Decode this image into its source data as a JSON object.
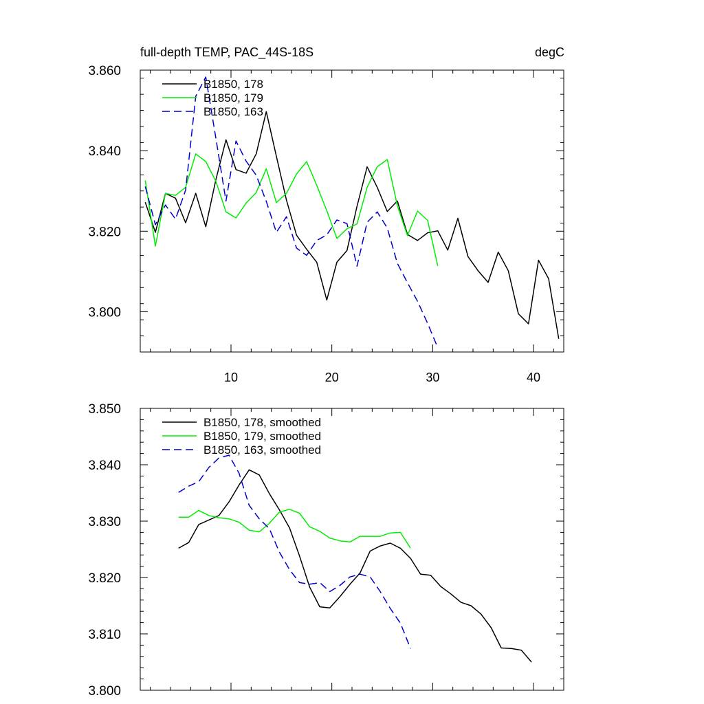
{
  "chart_data": [
    {
      "type": "line",
      "title": "full-depth TEMP, PAC_44S-18S",
      "units": "degC",
      "xlim": [
        1,
        43
      ],
      "ylim": [
        3.79,
        3.86
      ],
      "xticks": [
        10,
        20,
        30,
        40
      ],
      "yticks": [
        3.8,
        3.82,
        3.84,
        3.86
      ],
      "ytick_labels": [
        "3.800",
        "3.820",
        "3.840",
        "3.860"
      ],
      "grid": false,
      "legend_position": "top-left",
      "series": [
        {
          "name": "B1850, 178",
          "color": "#000000",
          "dash": "solid",
          "x": [
            1.5,
            2.5,
            3.5,
            4.5,
            5.5,
            6.5,
            7.5,
            8.5,
            9.5,
            10.5,
            11.5,
            12.5,
            13.5,
            14.5,
            15.5,
            16.5,
            17.5,
            18.5,
            19.5,
            20.5,
            21.5,
            22.5,
            23.5,
            24.5,
            25.5,
            26.5,
            27.5,
            28.5,
            29.5,
            30.5,
            31.5,
            32.5,
            33.5,
            34.5,
            35.5,
            36.5,
            37.5,
            38.5,
            39.5,
            40.5,
            41.5,
            42.5
          ],
          "y": [
            3.8272,
            3.8197,
            3.8294,
            3.8282,
            3.8221,
            3.8294,
            3.8211,
            3.8328,
            3.8427,
            3.8353,
            3.8344,
            3.8392,
            3.8497,
            3.8386,
            3.8277,
            3.819,
            3.8155,
            3.8123,
            3.8029,
            3.8123,
            3.8152,
            3.8262,
            3.836,
            3.8309,
            3.8249,
            3.8275,
            3.8192,
            3.8177,
            3.8196,
            3.8201,
            3.8153,
            3.8232,
            3.8137,
            3.8102,
            3.8073,
            3.8148,
            3.8102,
            3.7995,
            3.797,
            3.8128,
            3.8082,
            3.7933
          ]
        },
        {
          "name": "B1850, 179",
          "color": "#00ee00",
          "dash": "solid",
          "x": [
            1.5,
            2.5,
            3.5,
            4.5,
            5.5,
            6.5,
            7.5,
            8.5,
            9.5,
            10.5,
            11.5,
            12.5,
            13.5,
            14.5,
            15.5,
            16.5,
            17.5,
            18.5,
            19.5,
            20.5,
            21.5,
            22.5,
            23.5,
            24.5,
            25.5,
            26.5,
            27.5,
            28.5,
            29.5,
            30.5
          ],
          "y": [
            3.8326,
            3.8163,
            3.8294,
            3.8289,
            3.8309,
            3.8392,
            3.8373,
            3.8324,
            3.8248,
            3.8233,
            3.827,
            3.8296,
            3.8355,
            3.8271,
            3.8294,
            3.8342,
            3.8373,
            3.8314,
            3.8251,
            3.8182,
            3.8206,
            3.8218,
            3.8309,
            3.836,
            3.8378,
            3.8263,
            3.8189,
            3.825,
            3.8227,
            3.8114
          ]
        },
        {
          "name": "B1850, 163",
          "color": "#0000cc",
          "dash": "dashed",
          "x": [
            1.5,
            2.5,
            3.5,
            4.5,
            5.5,
            6.5,
            7.5,
            8.5,
            9.5,
            10.5,
            11.5,
            12.5,
            13.5,
            14.5,
            15.5,
            16.5,
            17.5,
            18.5,
            19.5,
            20.5,
            21.5,
            22.5,
            23.5,
            24.5,
            25.5,
            26.5,
            27.5,
            28.5,
            29.5,
            30.5
          ],
          "y": [
            3.8311,
            3.8216,
            3.8265,
            3.823,
            3.8302,
            3.8535,
            3.8583,
            3.8431,
            3.8275,
            3.8424,
            3.8374,
            3.8339,
            3.8274,
            3.8197,
            3.8236,
            3.8158,
            3.814,
            3.8177,
            3.8191,
            3.8228,
            3.8219,
            3.8113,
            3.8222,
            3.8248,
            3.8208,
            3.812,
            3.8072,
            3.8026,
            3.7971,
            3.7911
          ]
        }
      ]
    },
    {
      "type": "line",
      "xlim": [
        1,
        43
      ],
      "ylim": [
        3.8,
        3.85
      ],
      "xticks": [
        10,
        20,
        30,
        40
      ],
      "yticks": [
        3.8,
        3.81,
        3.82,
        3.83,
        3.84,
        3.85
      ],
      "ytick_labels": [
        "3.800",
        "3.810",
        "3.820",
        "3.830",
        "3.840",
        "3.850"
      ],
      "grid": false,
      "legend_position": "top-left",
      "series": [
        {
          "name": "B1850, 178, smoothed",
          "color": "#000000",
          "dash": "solid",
          "x": [
            4.8,
            5.8,
            6.8,
            7.8,
            8.8,
            9.8,
            10.8,
            11.8,
            12.8,
            13.8,
            14.8,
            15.8,
            16.8,
            17.8,
            18.8,
            19.8,
            20.8,
            21.8,
            22.8,
            23.8,
            24.8,
            25.8,
            26.8,
            27.8,
            28.8,
            29.8,
            30.8,
            31.8,
            32.8,
            33.8,
            34.8,
            35.8,
            36.8,
            37.8,
            38.8,
            39.8
          ],
          "y": [
            3.8252,
            3.8262,
            3.8294,
            3.8302,
            3.831,
            3.8334,
            3.8364,
            3.8391,
            3.8382,
            3.8349,
            3.832,
            3.8288,
            3.8238,
            3.8183,
            3.8148,
            3.8146,
            3.8166,
            3.8188,
            3.8208,
            3.8247,
            3.8256,
            3.8261,
            3.8252,
            3.8234,
            3.8206,
            3.8204,
            3.8184,
            3.8171,
            3.8156,
            3.815,
            3.8135,
            3.8111,
            3.8075,
            3.8074,
            3.8071,
            3.805
          ]
        },
        {
          "name": "B1850, 179, smoothed",
          "color": "#00ee00",
          "dash": "solid",
          "x": [
            4.8,
            5.8,
            6.8,
            7.8,
            8.8,
            9.8,
            10.8,
            11.8,
            12.8,
            13.8,
            14.8,
            15.8,
            16.8,
            17.8,
            18.8,
            19.8,
            20.8,
            21.8,
            22.8,
            23.8,
            24.8,
            25.8,
            26.8,
            27.8
          ],
          "y": [
            3.8307,
            3.8307,
            3.8319,
            3.831,
            3.8306,
            3.8304,
            3.8298,
            3.8284,
            3.8281,
            3.8296,
            3.8316,
            3.8321,
            3.8314,
            3.829,
            3.8282,
            3.827,
            3.8265,
            3.8263,
            3.8273,
            3.8273,
            3.8273,
            3.8279,
            3.828,
            3.8252
          ]
        },
        {
          "name": "B1850, 163, smoothed",
          "color": "#0000cc",
          "dash": "dashed",
          "x": [
            4.8,
            5.8,
            6.8,
            7.8,
            8.8,
            9.8,
            10.8,
            11.8,
            12.8,
            13.8,
            14.8,
            15.8,
            16.8,
            17.8,
            18.8,
            19.8,
            20.8,
            21.8,
            22.8,
            23.8,
            24.8,
            25.8,
            26.8,
            27.8
          ],
          "y": [
            3.8351,
            3.8362,
            3.837,
            3.8395,
            3.8412,
            3.8417,
            3.8385,
            3.8328,
            3.8304,
            3.8287,
            3.8245,
            3.8214,
            3.8191,
            3.8188,
            3.8191,
            3.8175,
            3.8186,
            3.8201,
            3.8206,
            3.8201,
            3.8175,
            3.8145,
            3.8119,
            3.8074
          ]
        }
      ]
    }
  ]
}
